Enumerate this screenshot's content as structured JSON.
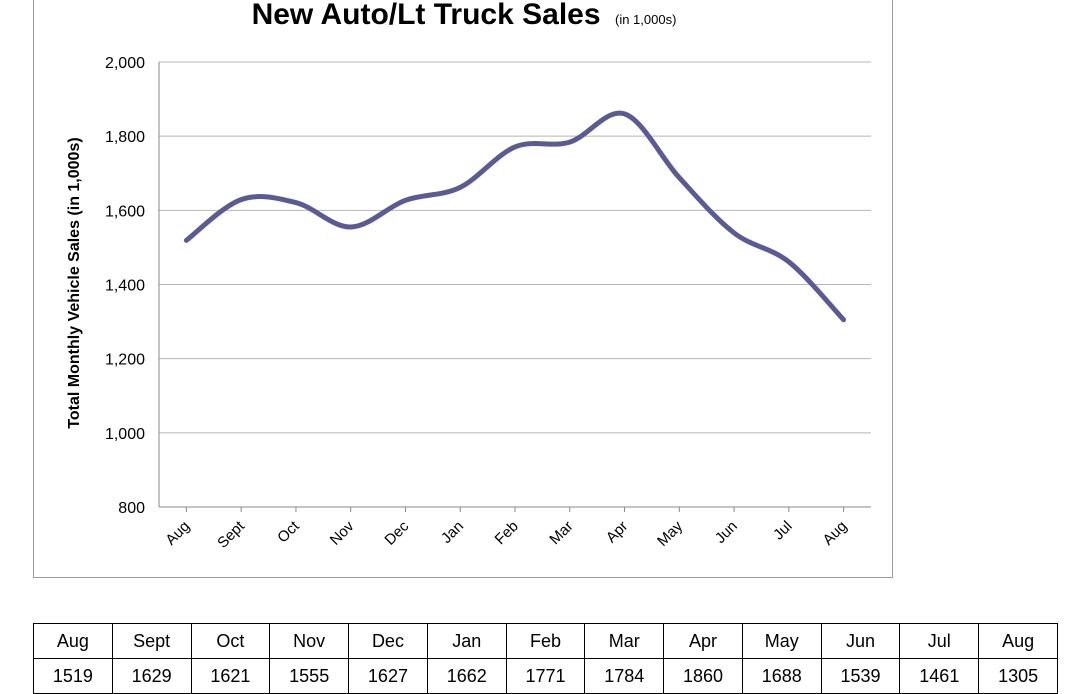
{
  "chart_data": {
    "type": "line",
    "title": "New Auto/Lt Truck Sales",
    "subtitle": "(in 1,000s)",
    "ylabel": "Total Monthly Vehicle Sales (in 1,000s)",
    "xlabel": "",
    "categories": [
      "Aug",
      "Sept",
      "Oct",
      "Nov",
      "Dec",
      "Jan",
      "Feb",
      "Mar",
      "Apr",
      "May",
      "Jun",
      "Jul",
      "Aug"
    ],
    "series": [
      {
        "values": [
          1519,
          1629,
          1621,
          1555,
          1627,
          1662,
          1771,
          1784,
          1860,
          1688,
          1539,
          1461,
          1305
        ]
      }
    ],
    "ylim": [
      800,
      2000
    ],
    "yticks": [
      800,
      1000,
      1200,
      1400,
      1600,
      1800,
      2000
    ],
    "ytick_labels": [
      "800",
      "1,000",
      "1,200",
      "1,400",
      "1,600",
      "1,800",
      "2,000"
    ],
    "grid": true,
    "line_color": "#5a5b95"
  },
  "table": {
    "headers": [
      "Aug",
      "Sept",
      "Oct",
      "Nov",
      "Dec",
      "Jan",
      "Feb",
      "Mar",
      "Apr",
      "May",
      "Jun",
      "Jul",
      "Aug"
    ],
    "values": [
      "1519",
      "1629",
      "1621",
      "1555",
      "1627",
      "1662",
      "1771",
      "1784",
      "1860",
      "1688",
      "1539",
      "1461",
      "1305"
    ]
  }
}
